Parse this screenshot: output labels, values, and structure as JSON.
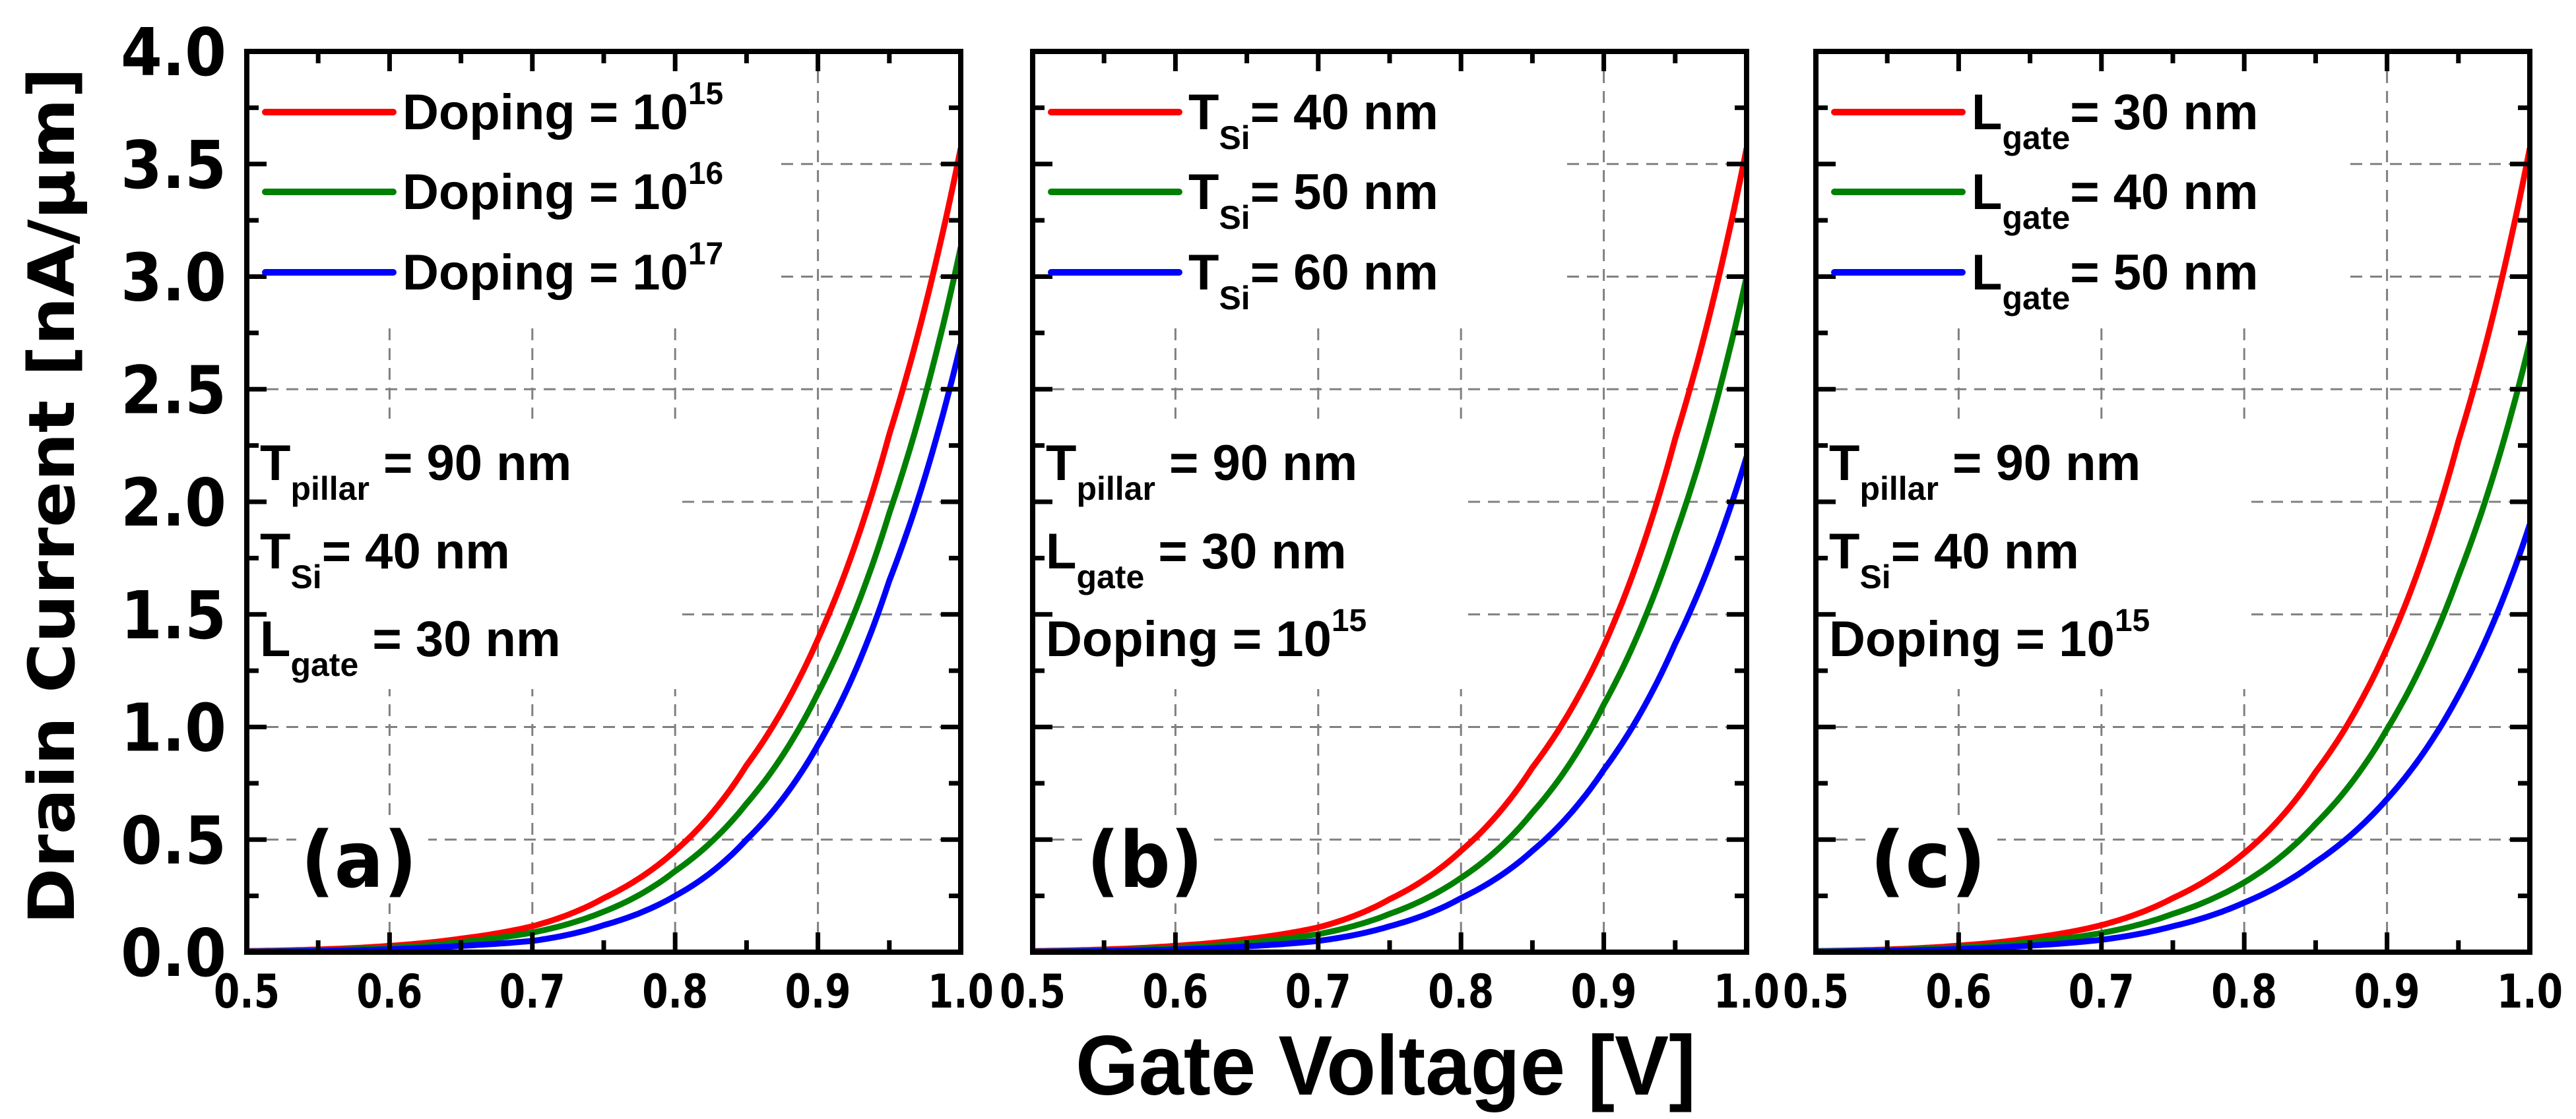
{
  "figure": {
    "ylabel": "Drain Current [nA/μm]",
    "xlabel": "Gate Voltage [V]"
  },
  "colors": {
    "series": [
      "#ff0000",
      "#008000",
      "#0000ff"
    ],
    "axis": "#000000",
    "grid": "#808080",
    "background": "#ffffff"
  },
  "chart_data": [
    {
      "type": "line",
      "panel_label": "(a)",
      "xlabel": "Gate Voltage [V]",
      "ylabel": "Drain Current [nA/μm]",
      "xlim": [
        0.5,
        1.0
      ],
      "ylim": [
        0.0,
        4.0
      ],
      "xticks": [
        "0.5",
        "0.6",
        "0.7",
        "0.8",
        "0.9",
        "1.0"
      ],
      "yticks": [
        "0.0",
        "0.5",
        "1.0",
        "1.5",
        "2.0",
        "2.5",
        "3.0",
        "3.5",
        "4.0"
      ],
      "grid": true,
      "legend_position": "top-left",
      "x": [
        0.5,
        0.55,
        0.6,
        0.65,
        0.7,
        0.75,
        0.8,
        0.85,
        0.9,
        0.95,
        1.0
      ],
      "series": [
        {
          "name": "Doping = 10^15",
          "label": {
            "main": "Doping = 10",
            "sup": "15"
          },
          "color": "#ff0000",
          "values": [
            0.005,
            0.012,
            0.028,
            0.06,
            0.115,
            0.24,
            0.45,
            0.83,
            1.39,
            2.3,
            3.57
          ]
        },
        {
          "name": "Doping = 10^16",
          "label": {
            "main": "Doping = 10",
            "sup": "16"
          },
          "color": "#008000",
          "values": [
            0.003,
            0.008,
            0.02,
            0.045,
            0.087,
            0.18,
            0.36,
            0.66,
            1.15,
            1.95,
            3.13
          ]
        },
        {
          "name": "Doping = 10^17",
          "label": {
            "main": "Doping = 10",
            "sup": "17"
          },
          "color": "#0000ff",
          "values": [
            0.002,
            0.005,
            0.013,
            0.028,
            0.05,
            0.12,
            0.25,
            0.5,
            0.92,
            1.65,
            2.7
          ]
        }
      ],
      "annotations": [
        {
          "main": "T",
          "sub": "pillar",
          "rest": " = 90 nm"
        },
        {
          "main": "T",
          "sub": "Si",
          "rest": "= 40 nm"
        },
        {
          "main": "L",
          "sub": "gate",
          "rest": " = 30 nm"
        }
      ]
    },
    {
      "type": "line",
      "panel_label": "(b)",
      "xlabel": "Gate Voltage [V]",
      "ylabel": "Drain Current [nA/μm]",
      "xlim": [
        0.5,
        1.0
      ],
      "ylim": [
        0.0,
        4.0
      ],
      "xticks": [
        "0.5",
        "0.6",
        "0.7",
        "0.8",
        "0.9",
        "1.0"
      ],
      "yticks": [
        "0.0",
        "0.5",
        "1.0",
        "1.5",
        "2.0",
        "2.5",
        "3.0",
        "3.5",
        "4.0"
      ],
      "grid": true,
      "legend_position": "top-left",
      "x": [
        0.5,
        0.55,
        0.6,
        0.65,
        0.7,
        0.75,
        0.8,
        0.85,
        0.9,
        0.95,
        1.0
      ],
      "series": [
        {
          "name": "T_Si= 40 nm",
          "label": {
            "main": "T",
            "sub": "Si",
            "rest": "= 40 nm"
          },
          "color": "#ff0000",
          "values": [
            0.005,
            0.012,
            0.028,
            0.058,
            0.11,
            0.235,
            0.45,
            0.82,
            1.36,
            2.28,
            3.57
          ]
        },
        {
          "name": "T_Si= 50 nm",
          "label": {
            "main": "T",
            "sub": "Si",
            "rest": "= 50 nm"
          },
          "color": "#008000",
          "values": [
            0.003,
            0.008,
            0.019,
            0.042,
            0.08,
            0.17,
            0.33,
            0.62,
            1.1,
            1.85,
            3.0
          ]
        },
        {
          "name": "T_Si= 60 nm",
          "label": {
            "main": "T",
            "sub": "Si",
            "rest": "= 60 nm"
          },
          "color": "#0000ff",
          "values": [
            0.002,
            0.005,
            0.012,
            0.026,
            0.05,
            0.115,
            0.24,
            0.45,
            0.81,
            1.37,
            2.2
          ]
        }
      ],
      "annotations": [
        {
          "main": "T",
          "sub": "pillar",
          "rest": " = 90 nm"
        },
        {
          "main": "L",
          "sub": "gate",
          "rest": " = 30 nm"
        },
        {
          "main": "Doping = 10",
          "sup": "15"
        }
      ]
    },
    {
      "type": "line",
      "panel_label": "(c)",
      "xlabel": "Gate Voltage [V]",
      "ylabel": "Drain Current [nA/μm]",
      "xlim": [
        0.5,
        1.0
      ],
      "ylim": [
        0.0,
        4.0
      ],
      "xticks": [
        "0.5",
        "0.6",
        "0.7",
        "0.8",
        "0.9",
        "1.0"
      ],
      "yticks": [
        "0.0",
        "0.5",
        "1.0",
        "1.5",
        "2.0",
        "2.5",
        "3.0",
        "3.5",
        "4.0"
      ],
      "grid": true,
      "legend_position": "top-left",
      "x": [
        0.5,
        0.55,
        0.6,
        0.65,
        0.7,
        0.75,
        0.8,
        0.85,
        0.9,
        0.95,
        1.0
      ],
      "series": [
        {
          "name": "L_gate= 30 nm",
          "label": {
            "main": "L",
            "sub": "gate",
            "rest": "= 30 nm"
          },
          "color": "#ff0000",
          "values": [
            0.005,
            0.012,
            0.029,
            0.062,
            0.12,
            0.24,
            0.44,
            0.8,
            1.35,
            2.27,
            3.57
          ]
        },
        {
          "name": "L_gate= 40 nm",
          "label": {
            "main": "L",
            "sub": "gate",
            "rest": "= 40 nm"
          },
          "color": "#008000",
          "values": [
            0.004,
            0.009,
            0.021,
            0.044,
            0.085,
            0.17,
            0.31,
            0.57,
            0.99,
            1.67,
            2.71
          ]
        },
        {
          "name": "L_gate= 50 nm",
          "label": {
            "main": "L",
            "sub": "gate",
            "rest": "= 50 nm"
          },
          "color": "#0000ff",
          "values": [
            0.002,
            0.006,
            0.014,
            0.029,
            0.055,
            0.115,
            0.22,
            0.4,
            0.68,
            1.14,
            1.9
          ]
        }
      ],
      "annotations": [
        {
          "main": "T",
          "sub": "pillar",
          "rest": " = 90 nm"
        },
        {
          "main": "T",
          "sub": "Si",
          "rest": "= 40 nm"
        },
        {
          "main": "Doping = 10",
          "sup": "15"
        }
      ]
    }
  ]
}
